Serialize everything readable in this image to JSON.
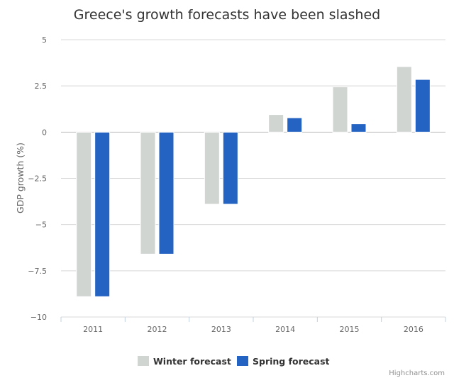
{
  "chart_data": {
    "type": "bar",
    "title": "Greece's growth forecasts have been slashed",
    "xlabel": "",
    "ylabel": "GDP growth (%)",
    "categories": [
      "2011",
      "2012",
      "2013",
      "2014",
      "2015",
      "2016"
    ],
    "series": [
      {
        "name": "Winter forecast",
        "color": "#d1d5d2",
        "values": [
          -8.9,
          -6.6,
          -3.9,
          0.95,
          2.45,
          3.55
        ]
      },
      {
        "name": "Spring forecast",
        "color": "#2463c2",
        "values": [
          -8.9,
          -6.6,
          -3.9,
          0.78,
          0.45,
          2.85
        ]
      }
    ],
    "ylim": [
      -10,
      5
    ],
    "yticks": [
      {
        "value": 5,
        "label": "5"
      },
      {
        "value": 2.5,
        "label": "2.5"
      },
      {
        "value": 0,
        "label": "0"
      },
      {
        "value": -2.5,
        "label": "−2.5"
      },
      {
        "value": -5,
        "label": "−5"
      },
      {
        "value": -7.5,
        "label": "−7.5"
      },
      {
        "value": -10,
        "label": "−10"
      }
    ],
    "grid": true,
    "legend": "bottom-center"
  },
  "credits": "Highcharts.com"
}
